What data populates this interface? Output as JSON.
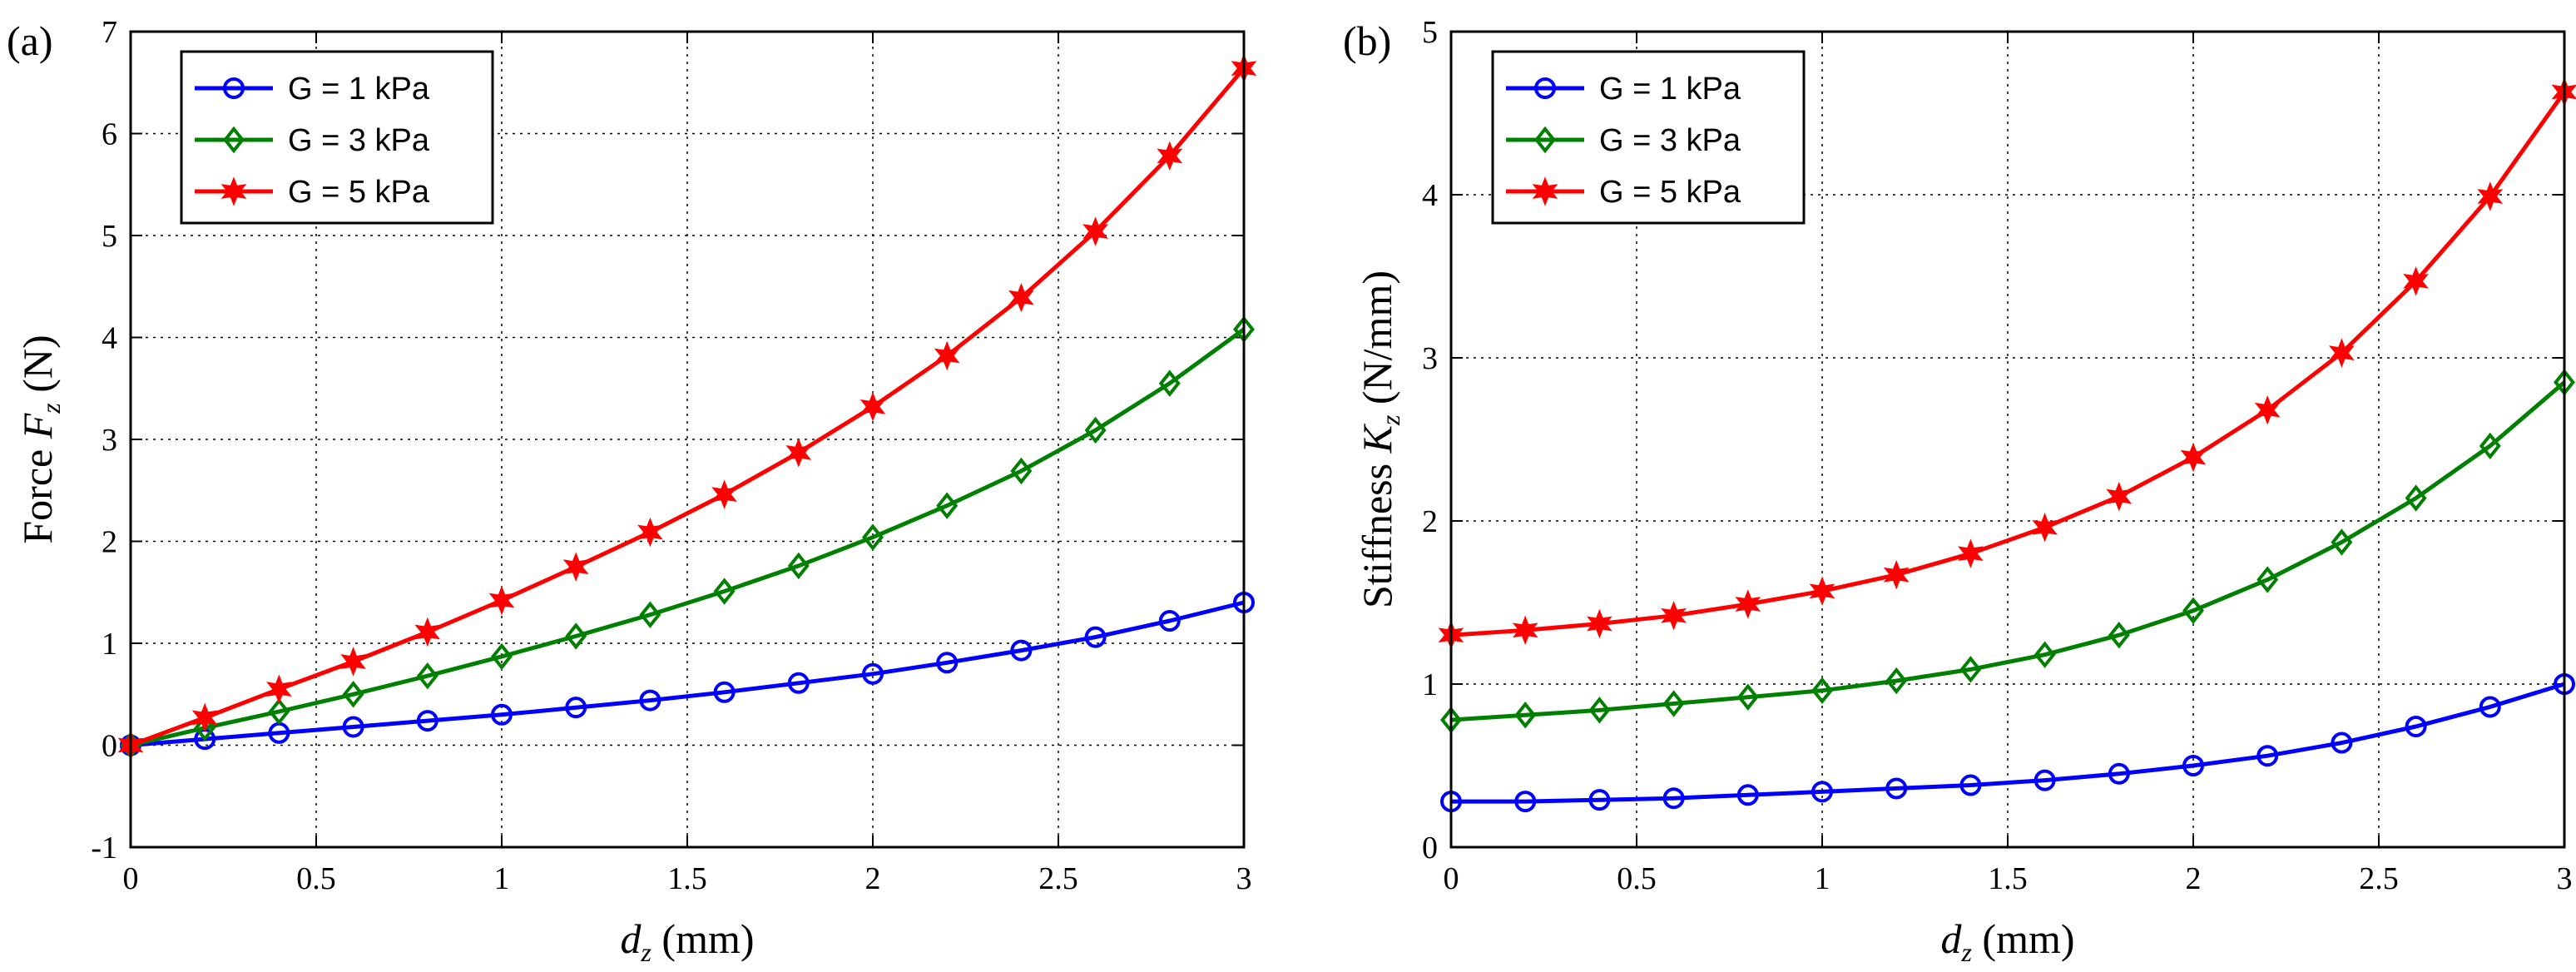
{
  "chart_data": [
    {
      "type": "line",
      "panel_label": "(a)",
      "ylabel": {
        "prefix": "Force ",
        "var": "F",
        "sub": "z",
        "suffix": " (N)"
      },
      "xlabel": {
        "var": "d",
        "sub": "z",
        "suffix": " (mm)"
      },
      "xlim": [
        0,
        3
      ],
      "ylim": [
        -1,
        7
      ],
      "xticks": [
        "0",
        "0.5",
        "1",
        "1.5",
        "2",
        "2.5",
        "3"
      ],
      "xtick_values": [
        0,
        0.5,
        1,
        1.5,
        2,
        2.5,
        3
      ],
      "yticks": [
        "-1",
        "0",
        "1",
        "2",
        "3",
        "4",
        "5",
        "6",
        "7"
      ],
      "ytick_values": [
        -1,
        0,
        1,
        2,
        3,
        4,
        5,
        6,
        7
      ],
      "grid": true,
      "legend_position": "top-left",
      "x": [
        0,
        0.2,
        0.4,
        0.6,
        0.8,
        1.0,
        1.2,
        1.4,
        1.6,
        1.8,
        2.0,
        2.2,
        2.4,
        2.6,
        2.8,
        3.0
      ],
      "series": [
        {
          "name": "G = 1 kPa",
          "color": "#0000ff",
          "marker": "circle",
          "values": [
            0,
            0.06,
            0.12,
            0.18,
            0.24,
            0.3,
            0.37,
            0.44,
            0.52,
            0.61,
            0.7,
            0.81,
            0.93,
            1.06,
            1.22,
            1.4
          ]
        },
        {
          "name": "G = 3 kPa",
          "color": "#008000",
          "marker": "diamond",
          "values": [
            0,
            0.17,
            0.33,
            0.5,
            0.68,
            0.87,
            1.07,
            1.28,
            1.51,
            1.76,
            2.04,
            2.35,
            2.69,
            3.09,
            3.55,
            4.08
          ]
        },
        {
          "name": "G = 5 kPa",
          "color": "#ff0000",
          "marker": "star",
          "values": [
            0,
            0.27,
            0.55,
            0.82,
            1.11,
            1.42,
            1.75,
            2.09,
            2.46,
            2.87,
            3.32,
            3.82,
            4.39,
            5.04,
            5.78,
            6.64
          ]
        }
      ]
    },
    {
      "type": "line",
      "panel_label": "(b)",
      "ylabel": {
        "prefix": "Stiffness ",
        "var": "K",
        "sub": "z",
        "suffix": " (N/mm)"
      },
      "xlabel": {
        "var": "d",
        "sub": "z",
        "suffix": " (mm)"
      },
      "xlim": [
        0,
        3
      ],
      "ylim": [
        0,
        5
      ],
      "xticks": [
        "0",
        "0.5",
        "1",
        "1.5",
        "2",
        "2.5",
        "3"
      ],
      "xtick_values": [
        0,
        0.5,
        1,
        1.5,
        2,
        2.5,
        3
      ],
      "yticks": [
        "0",
        "1",
        "2",
        "3",
        "4",
        "5"
      ],
      "ytick_values": [
        0,
        1,
        2,
        3,
        4,
        5
      ],
      "grid": true,
      "legend_position": "top-left",
      "x": [
        0,
        0.2,
        0.4,
        0.6,
        0.8,
        1.0,
        1.2,
        1.4,
        1.6,
        1.8,
        2.0,
        2.2,
        2.4,
        2.6,
        2.8,
        3.0
      ],
      "series": [
        {
          "name": "G = 1 kPa",
          "color": "#0000ff",
          "marker": "circle",
          "values": [
            0.28,
            0.28,
            0.29,
            0.3,
            0.32,
            0.34,
            0.36,
            0.38,
            0.41,
            0.45,
            0.5,
            0.56,
            0.64,
            0.74,
            0.86,
            1.0
          ]
        },
        {
          "name": "G = 3 kPa",
          "color": "#008000",
          "marker": "diamond",
          "values": [
            0.78,
            0.81,
            0.84,
            0.88,
            0.92,
            0.96,
            1.02,
            1.09,
            1.18,
            1.3,
            1.45,
            1.64,
            1.87,
            2.14,
            2.46,
            2.85
          ]
        },
        {
          "name": "G = 5 kPa",
          "color": "#ff0000",
          "marker": "star",
          "values": [
            1.3,
            1.33,
            1.37,
            1.42,
            1.49,
            1.57,
            1.67,
            1.8,
            1.96,
            2.15,
            2.39,
            2.68,
            3.03,
            3.47,
            3.99,
            4.63
          ]
        }
      ]
    }
  ]
}
